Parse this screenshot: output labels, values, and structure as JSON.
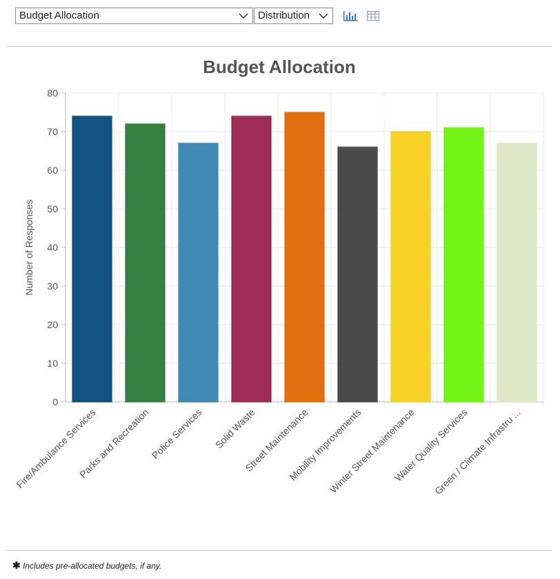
{
  "controls": {
    "chart_select": "Budget Allocation",
    "view_select": "Distribution"
  },
  "chart_data": {
    "type": "bar",
    "title": "Budget Allocation",
    "y_label": "Number of Responses",
    "categories": [
      "Fire/Ambulance Services",
      "Parks and Recreation",
      "Police Services",
      "Solid Waste",
      "Street Maintenance",
      "Mobility Improvements",
      "Winter Street Maintenance",
      "Water Quality Services",
      "Green / Climate Infrastru ..."
    ],
    "values": [
      74,
      72,
      67,
      74,
      75,
      66,
      70,
      71,
      67
    ],
    "colors": [
      "#0b4c7d",
      "#2e7d3c",
      "#3a86b4",
      "#9c2651",
      "#e36a06",
      "#444444",
      "#f9d11f",
      "#6cf50d",
      "#dde8c6"
    ],
    "ylim": [
      0,
      80
    ],
    "yticks": [
      0,
      10,
      20,
      30,
      40,
      50,
      60,
      70,
      80
    ],
    "grid": true
  },
  "footnote": "Includes pre-allocated budgets, if any."
}
